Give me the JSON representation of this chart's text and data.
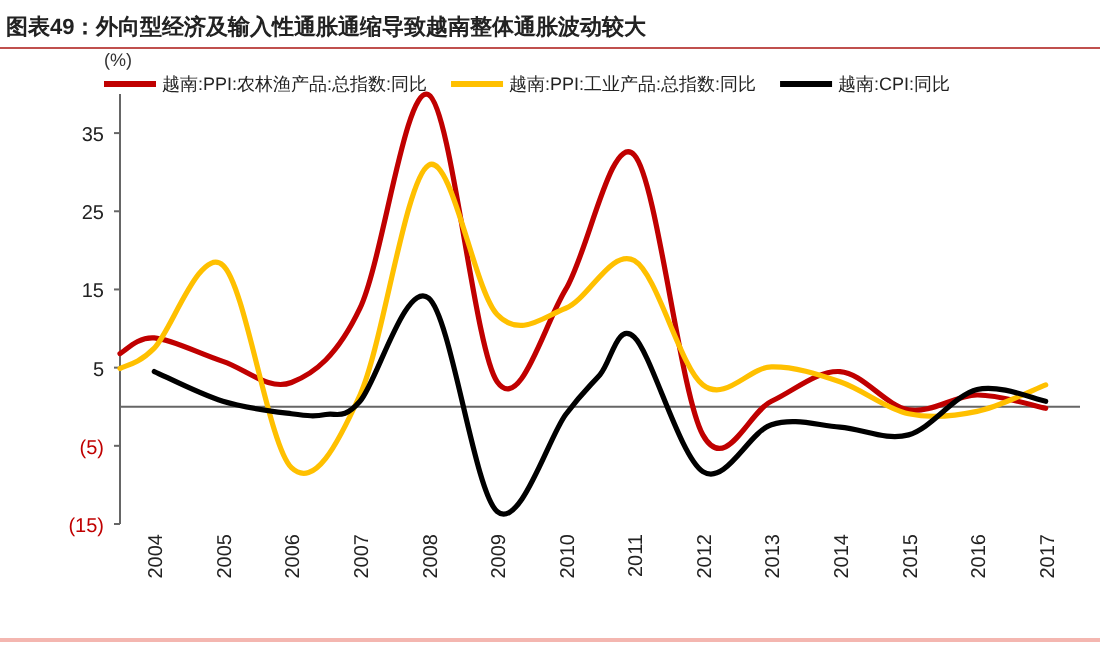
{
  "chart_data": {
    "type": "line",
    "title": "图表49：外向型经济及输入性通胀通缩导致越南整体通胀波动较大",
    "ylabel": "(%)",
    "xlim": [
      2003.5,
      2017.5
    ],
    "xticks": [
      {
        "value": 2004,
        "label": "2004"
      },
      {
        "value": 2005,
        "label": "2005"
      },
      {
        "value": 2006,
        "label": "2006"
      },
      {
        "value": 2007,
        "label": "2007"
      },
      {
        "value": 2008,
        "label": "2008"
      },
      {
        "value": 2009,
        "label": "2009"
      },
      {
        "value": 2010,
        "label": "2010"
      },
      {
        "value": 2011,
        "label": "2011"
      },
      {
        "value": 2012,
        "label": "2012"
      },
      {
        "value": 2013,
        "label": "2013"
      },
      {
        "value": 2014,
        "label": "2014"
      },
      {
        "value": 2015,
        "label": "2015"
      },
      {
        "value": 2016,
        "label": "2016"
      },
      {
        "value": 2017,
        "label": "2017"
      }
    ],
    "ylim": [
      -15,
      40
    ],
    "yticks": [
      {
        "value": -15,
        "label": "(15)"
      },
      {
        "value": -5,
        "label": "(5)"
      },
      5,
      15,
      25,
      35
    ],
    "legend": "top",
    "grid": false,
    "marker": "none",
    "line_style": "solid",
    "series": [
      {
        "name": "越南:PPI:农林渔产品:总指数:同比",
        "color": "#c00000",
        "x": [
          2003.5,
          2004,
          2005,
          2006,
          2007,
          2008,
          2009,
          2010,
          2011,
          2012,
          2013,
          2014,
          2015,
          2016,
          2017
        ],
        "values": [
          6.8,
          8.8,
          5.8,
          3.1,
          12.6,
          39.9,
          3.2,
          15,
          32.2,
          -3.6,
          0.7,
          4.5,
          -0.4,
          1.5,
          -0.2
        ]
      },
      {
        "name": "越南:PPI:工业产品:总指数:同比",
        "color": "#ffc000",
        "x": [
          2003.5,
          2004,
          2005,
          2006,
          2007,
          2008,
          2009,
          2010,
          2011,
          2012,
          2013,
          2014,
          2015,
          2016,
          2017
        ],
        "values": [
          4.9,
          7.5,
          18.1,
          -7.8,
          1.5,
          30.9,
          11.8,
          12.6,
          18.7,
          2.8,
          5.1,
          3.2,
          -0.9,
          -0.6,
          2.8
        ]
      },
      {
        "name": "越南:CPI:同比",
        "color": "#000000",
        "x": [
          2004,
          2005,
          2006,
          2006.5,
          2007,
          2008,
          2009,
          2010,
          2010.5,
          2011,
          2012,
          2013,
          2014,
          2015,
          2016,
          2017
        ],
        "values": [
          4.5,
          0.7,
          -0.9,
          -1,
          0.7,
          13.9,
          -13.4,
          -1,
          4.1,
          8.9,
          -8.3,
          -2.3,
          -2.6,
          -3.6,
          2.2,
          0.7
        ]
      }
    ]
  }
}
